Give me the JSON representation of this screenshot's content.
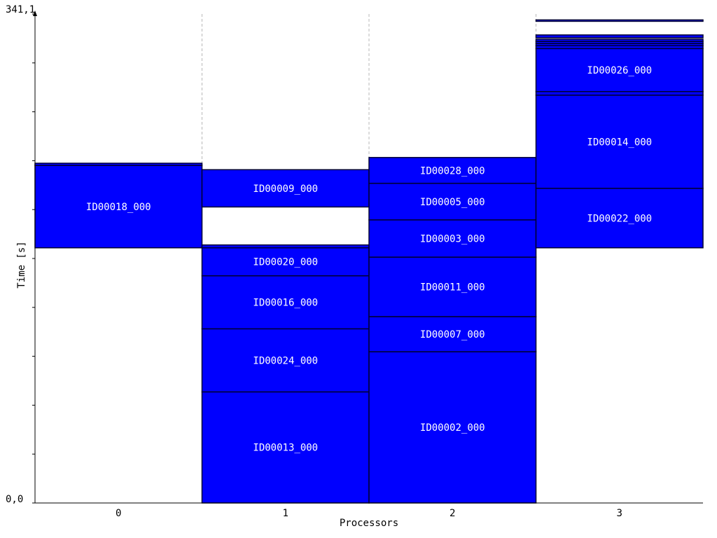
{
  "chart_data": {
    "type": "gantt",
    "xlabel": "Processors",
    "ylabel": "Time [s]",
    "ylim": [
      0,
      341.1
    ],
    "y_top_label": "341,1",
    "y_bottom_label": "0,0",
    "categories": [
      "0",
      "1",
      "2",
      "3"
    ],
    "grid": "dashed vertical separators between processors",
    "colors": {
      "bar": "#0000ff",
      "border": "#000033",
      "label": "#ffffff"
    },
    "tasks": [
      {
        "processor": 0,
        "label": "ID00018_000",
        "start": 178.0,
        "end": 235.5
      },
      {
        "processor": 0,
        "label": "",
        "start": 235.5,
        "end": 237.0
      },
      {
        "processor": 1,
        "label": "ID00013_000",
        "start": 0.0,
        "end": 77.5
      },
      {
        "processor": 1,
        "label": "ID00024_000",
        "start": 77.5,
        "end": 121.5
      },
      {
        "processor": 1,
        "label": "ID00016_000",
        "start": 121.5,
        "end": 158.5
      },
      {
        "processor": 1,
        "label": "ID00020_000",
        "start": 158.5,
        "end": 178.0
      },
      {
        "processor": 1,
        "label": "",
        "start": 178.0,
        "end": 180.0
      },
      {
        "processor": 1,
        "label": "ID00009_000",
        "start": 206.5,
        "end": 232.5
      },
      {
        "processor": 2,
        "label": "ID00002_000",
        "start": 0.0,
        "end": 105.5
      },
      {
        "processor": 2,
        "label": "ID00007_000",
        "start": 105.5,
        "end": 130.0
      },
      {
        "processor": 2,
        "label": "ID00011_000",
        "start": 130.0,
        "end": 171.5
      },
      {
        "processor": 2,
        "label": "ID00003_000",
        "start": 171.5,
        "end": 197.5
      },
      {
        "processor": 2,
        "label": "ID00005_000",
        "start": 197.5,
        "end": 223.0
      },
      {
        "processor": 2,
        "label": "ID00028_000",
        "start": 223.0,
        "end": 241.0
      },
      {
        "processor": 3,
        "label": "ID00022_000",
        "start": 178.0,
        "end": 219.5
      },
      {
        "processor": 3,
        "label": "ID00014_000",
        "start": 219.5,
        "end": 284.5
      },
      {
        "processor": 3,
        "label": "",
        "start": 284.5,
        "end": 287.0
      },
      {
        "processor": 3,
        "label": "ID00026_000",
        "start": 287.0,
        "end": 317.0
      },
      {
        "processor": 3,
        "label": "",
        "start": 317.0,
        "end": 319.0
      },
      {
        "processor": 3,
        "label": "",
        "start": 319.0,
        "end": 320.5
      },
      {
        "processor": 3,
        "label": "",
        "start": 320.5,
        "end": 322.0
      },
      {
        "processor": 3,
        "label": "",
        "start": 322.0,
        "end": 323.5
      },
      {
        "processor": 3,
        "label": "",
        "start": 324.5,
        "end": 326.5
      },
      {
        "processor": 3,
        "label": "",
        "start": 336.0,
        "end": 337.0
      }
    ]
  }
}
